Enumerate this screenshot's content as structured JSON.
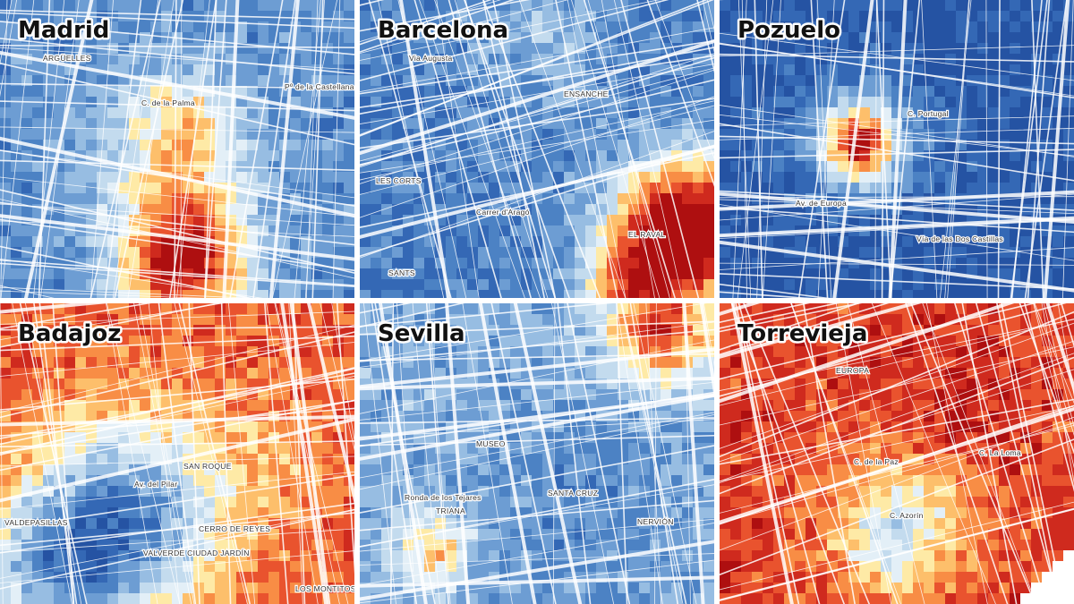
{
  "panels": [
    {
      "city": "Madrid",
      "labels": [
        "ARGÜELLES",
        "C. de la Palma",
        "Pº de la Castellana"
      ]
    },
    {
      "city": "Barcelona",
      "labels": [
        "Via Augusta",
        "ENSANCHE",
        "LES CORTS",
        "EL RAVAL",
        "SANTS",
        "Carrer d'Aragó"
      ]
    },
    {
      "city": "Pozuelo",
      "labels": [
        "C. Portugal",
        "Av. de Europa",
        "Vía de las Dos Castillas"
      ]
    },
    {
      "city": "Badajoz",
      "labels": [
        "SAN ROQUE",
        "VALDEPASILLAS",
        "VALVERDE CIUDAD JARDÍN",
        "CERRO DE REYES",
        "LOS MONTITOS",
        "Av. del Pilar"
      ]
    },
    {
      "city": "Sevilla",
      "labels": [
        "MUSEO",
        "TRIANA",
        "SANTA CRUZ",
        "NERVIÓN",
        "Ronda de los Tejares"
      ]
    },
    {
      "city": "Torrevieja",
      "labels": [
        "EUROPA",
        "C. de la Paz",
        "C. Azorín",
        "C. La Loma"
      ]
    }
  ]
}
